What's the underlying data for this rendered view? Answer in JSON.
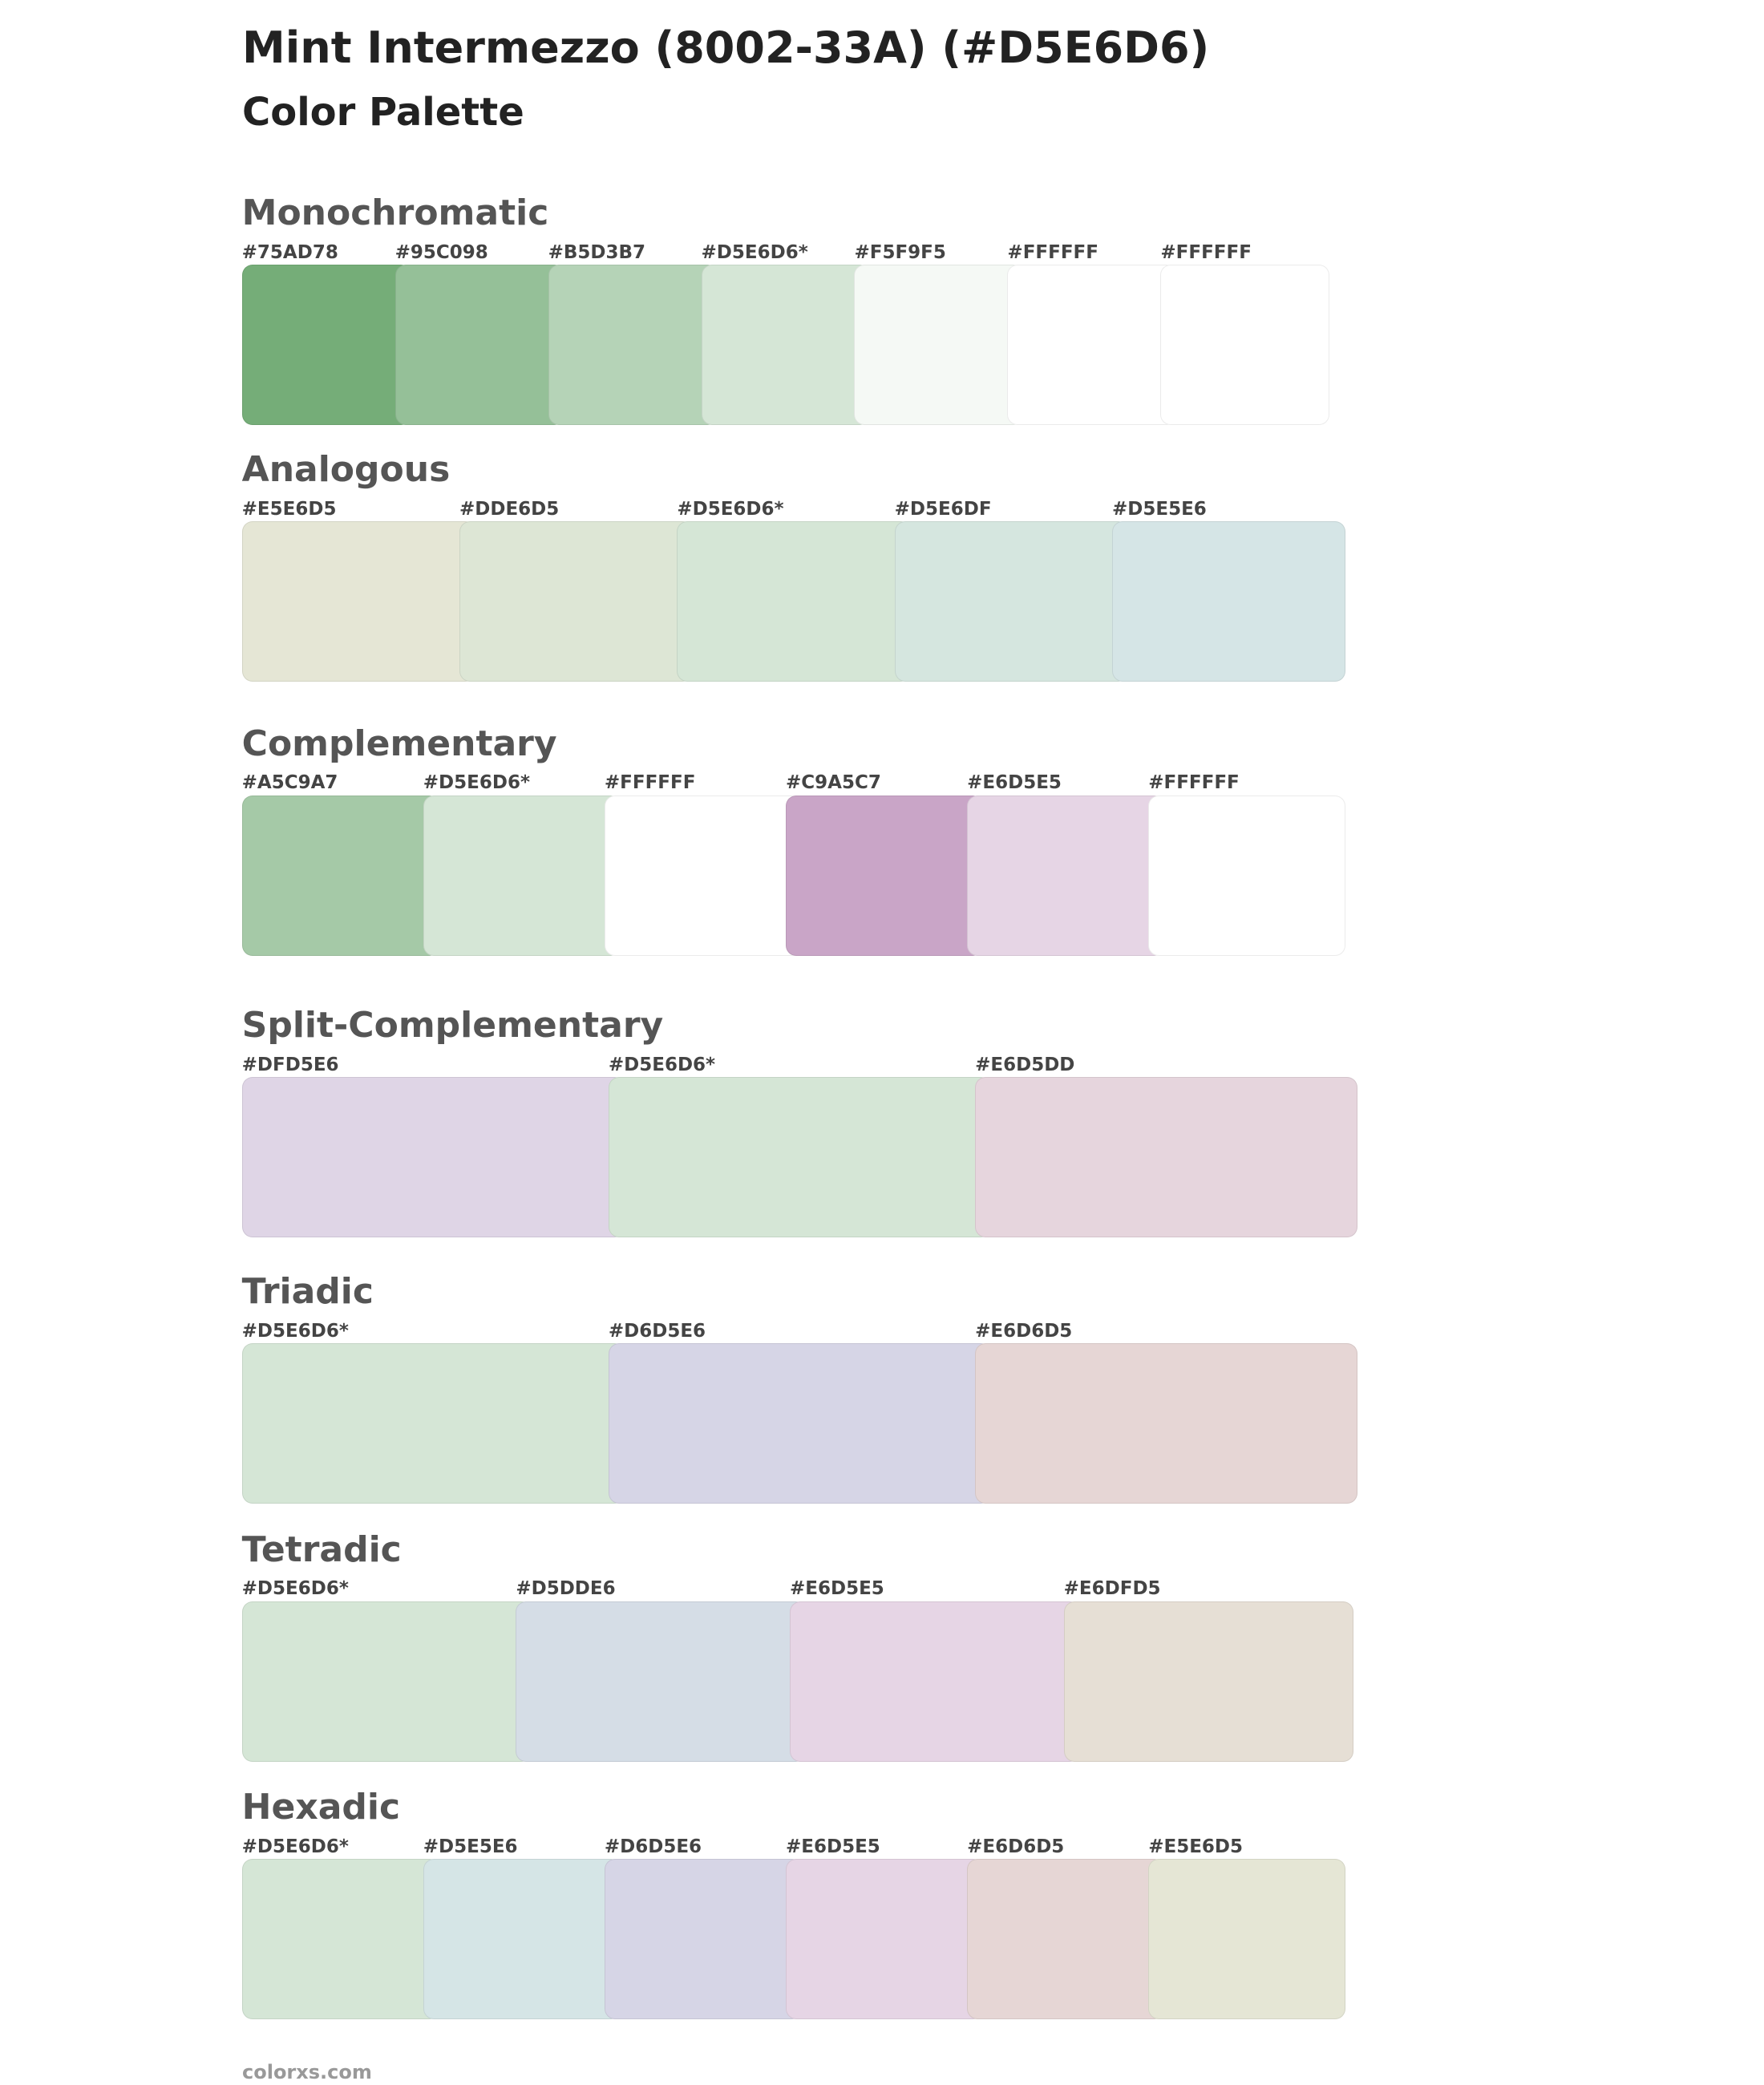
{
  "header": {
    "title": "Mint Intermezzo (8002-33A) (#D5E6D6)",
    "subtitle": "Color Palette"
  },
  "sections": [
    {
      "name": "Monochromatic",
      "swatches": [
        {
          "label": "#75AD78",
          "color": "#75AD78"
        },
        {
          "label": "#95C098",
          "color": "#95C098"
        },
        {
          "label": "#B5D3B7",
          "color": "#B5D3B7"
        },
        {
          "label": "#D5E6D6*",
          "color": "#D5E6D6"
        },
        {
          "label": "#F5F9F5",
          "color": "#F5F9F5"
        },
        {
          "label": "#FFFFFF",
          "color": "#FFFFFF"
        },
        {
          "label": "#FFFFFF",
          "color": "#FFFFFF"
        }
      ]
    },
    {
      "name": "Analogous",
      "swatches": [
        {
          "label": "#E5E6D5",
          "color": "#E5E6D5"
        },
        {
          "label": "#DDE6D5",
          "color": "#DDE6D5"
        },
        {
          "label": "#D5E6D6*",
          "color": "#D5E6D6"
        },
        {
          "label": "#D5E6DF",
          "color": "#D5E6DF"
        },
        {
          "label": "#D5E5E6",
          "color": "#D5E5E6"
        }
      ]
    },
    {
      "name": "Complementary",
      "swatches": [
        {
          "label": "#A5C9A7",
          "color": "#A5C9A7"
        },
        {
          "label": "#D5E6D6*",
          "color": "#D5E6D6"
        },
        {
          "label": "#FFFFFF",
          "color": "#FFFFFF"
        },
        {
          "label": "#C9A5C7",
          "color": "#C9A5C7"
        },
        {
          "label": "#E6D5E5",
          "color": "#E6D5E5"
        },
        {
          "label": "#FFFFFF",
          "color": "#FFFFFF"
        }
      ]
    },
    {
      "name": "Split-Complementary",
      "swatches": [
        {
          "label": "#DFD5E6",
          "color": "#DFD5E6"
        },
        {
          "label": "#D5E6D6*",
          "color": "#D5E6D6"
        },
        {
          "label": "#E6D5DD",
          "color": "#E6D5DD"
        }
      ]
    },
    {
      "name": "Triadic",
      "swatches": [
        {
          "label": "#D5E6D6*",
          "color": "#D5E6D6"
        },
        {
          "label": "#D6D5E6",
          "color": "#D6D5E6"
        },
        {
          "label": "#E6D6D5",
          "color": "#E6D6D5"
        }
      ]
    },
    {
      "name": "Tetradic",
      "swatches": [
        {
          "label": "#D5E6D6*",
          "color": "#D5E6D6"
        },
        {
          "label": "#D5DDE6",
          "color": "#D5DDE6"
        },
        {
          "label": "#E6D5E5",
          "color": "#E6D5E5"
        },
        {
          "label": "#E6DFD5",
          "color": "#E6DFD5"
        }
      ]
    },
    {
      "name": "Hexadic",
      "swatches": [
        {
          "label": "#D5E6D6*",
          "color": "#D5E6D6"
        },
        {
          "label": "#D5E5E6",
          "color": "#D5E5E6"
        },
        {
          "label": "#D6D5E6",
          "color": "#D6D5E6"
        },
        {
          "label": "#E6D5E5",
          "color": "#E6D5E5"
        },
        {
          "label": "#E6D6D5",
          "color": "#E6D6D5"
        },
        {
          "label": "#E5E6D5",
          "color": "#E5E6D5"
        }
      ]
    }
  ],
  "footer": "colorxs.com"
}
